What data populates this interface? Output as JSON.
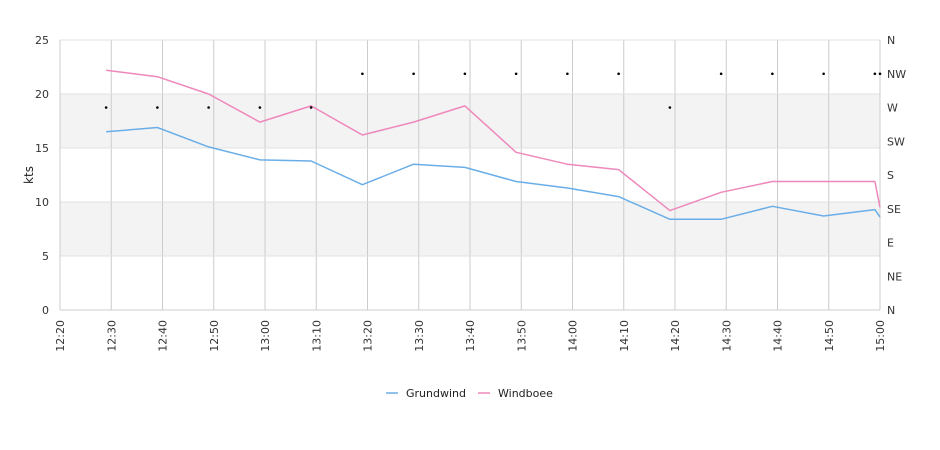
{
  "chart_data": {
    "type": "line",
    "ylabel": "kts",
    "ylim": [
      0,
      25
    ],
    "yticks": [
      "0",
      "5",
      "10",
      "15",
      "20",
      "25"
    ],
    "xlim": [
      "12:20",
      "15:00"
    ],
    "xticks": [
      "12:20",
      "12:30",
      "12:40",
      "12:50",
      "13:00",
      "13:10",
      "13:20",
      "13:30",
      "13:40",
      "13:50",
      "14:00",
      "14:10",
      "14:20",
      "14:30",
      "14:40",
      "14:50",
      "15:00"
    ],
    "y2ticks": [
      "N",
      "NE",
      "E",
      "SE",
      "S",
      "SW",
      "W",
      "NW",
      "N"
    ],
    "grid": "vertical lines, alternating horizontal bands",
    "legend_position": "bottom-center",
    "series": [
      {
        "name": "Grundwind",
        "color": "#6aaee8",
        "x": [
          "12:29",
          "12:39",
          "12:49",
          "12:59",
          "13:09",
          "13:19",
          "13:29",
          "13:39",
          "13:49",
          "13:59",
          "14:09",
          "14:19",
          "14:29",
          "14:39",
          "14:49",
          "14:59",
          "15:00"
        ],
        "values": [
          16.5,
          16.9,
          15.1,
          13.9,
          13.8,
          11.6,
          13.5,
          13.2,
          11.9,
          11.3,
          10.5,
          8.4,
          8.4,
          9.6,
          8.7,
          9.3,
          8.6
        ]
      },
      {
        "name": "Windboee",
        "color": "#ee88bb",
        "x": [
          "12:29",
          "12:39",
          "12:49",
          "12:59",
          "13:09",
          "13:19",
          "13:29",
          "13:39",
          "13:49",
          "13:59",
          "14:09",
          "14:19",
          "14:29",
          "14:39",
          "14:49",
          "14:59",
          "15:00"
        ],
        "values": [
          22.2,
          21.6,
          20.0,
          17.4,
          18.9,
          16.2,
          17.4,
          18.9,
          14.6,
          13.5,
          13.0,
          9.2,
          10.9,
          11.9,
          11.9,
          11.9,
          9.5
        ]
      }
    ],
    "direction_points": {
      "x": [
        "12:29",
        "12:39",
        "12:49",
        "12:59",
        "13:09",
        "13:19",
        "13:29",
        "13:39",
        "13:49",
        "13:59",
        "14:09",
        "14:19",
        "14:29",
        "14:39",
        "14:49",
        "14:59",
        "15:00"
      ],
      "values": [
        "W",
        "W",
        "W",
        "W",
        "W",
        "NW",
        "NW",
        "NW",
        "NW",
        "NW",
        "NW",
        "W",
        "NW",
        "NW",
        "NW",
        "NW",
        "NW"
      ]
    }
  }
}
